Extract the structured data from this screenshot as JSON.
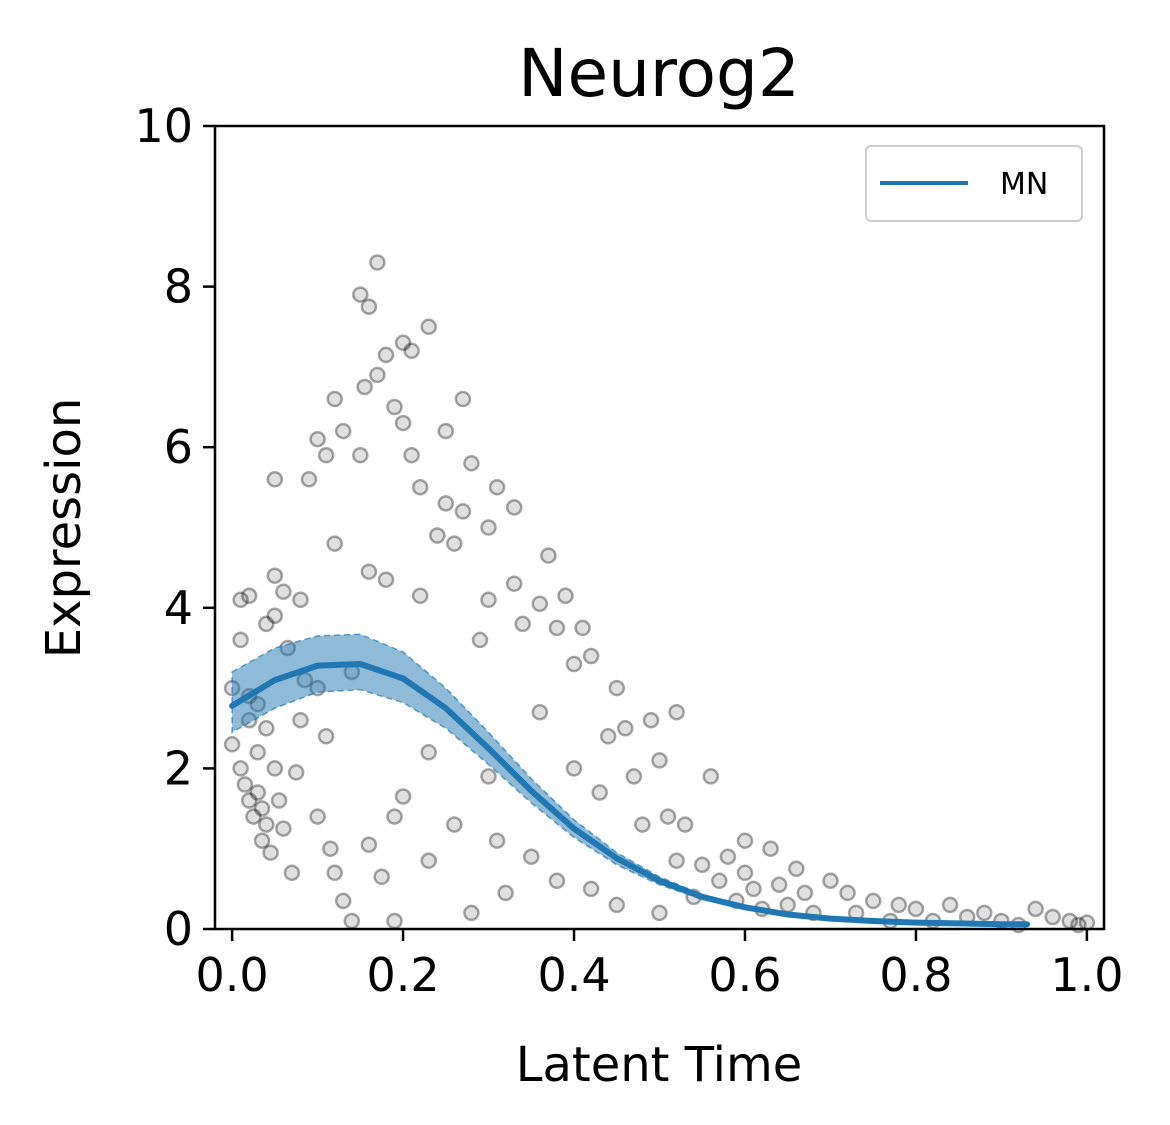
{
  "chart_data": {
    "type": "scatter",
    "title": "Neurog2",
    "xlabel": "Latent Time",
    "ylabel": "Expression",
    "xlim": [
      -0.02,
      1.02
    ],
    "ylim": [
      0,
      10
    ],
    "xticks": [
      "0.0",
      "0.2",
      "0.4",
      "0.6",
      "0.8",
      "1.0"
    ],
    "yticks": [
      "0",
      "2",
      "4",
      "6",
      "8",
      "10"
    ],
    "grid": false,
    "legend": {
      "position": "top-right",
      "entries": [
        "MN"
      ]
    },
    "colors": {
      "points": "#000000",
      "fit_line": "#1f77b4",
      "band": "#1f77b4"
    },
    "series": [
      {
        "name": "MN",
        "kind": "line",
        "x": [
          0.0,
          0.05,
          0.1,
          0.15,
          0.2,
          0.25,
          0.3,
          0.35,
          0.4,
          0.45,
          0.5,
          0.55,
          0.6,
          0.65,
          0.7,
          0.75,
          0.8,
          0.85,
          0.9,
          0.93
        ],
        "y": [
          2.78,
          3.1,
          3.28,
          3.3,
          3.12,
          2.75,
          2.25,
          1.72,
          1.25,
          0.88,
          0.6,
          0.4,
          0.27,
          0.18,
          0.13,
          0.1,
          0.08,
          0.07,
          0.06,
          0.06
        ],
        "upper": [
          3.2,
          3.5,
          3.65,
          3.67,
          3.45,
          3.0,
          2.45,
          1.87,
          1.36,
          0.95,
          0.65,
          0.43,
          0.29,
          0.19,
          0.14,
          0.11,
          0.09,
          0.08,
          0.07,
          0.07
        ],
        "lower": [
          2.45,
          2.75,
          2.95,
          2.98,
          2.82,
          2.5,
          2.05,
          1.57,
          1.14,
          0.8,
          0.55,
          0.37,
          0.25,
          0.17,
          0.12,
          0.09,
          0.07,
          0.06,
          0.05,
          0.05
        ]
      },
      {
        "name": "",
        "kind": "scatter",
        "points": [
          [
            0.0,
            2.3
          ],
          [
            0.0,
            3.0
          ],
          [
            0.01,
            2.0
          ],
          [
            0.01,
            3.6
          ],
          [
            0.01,
            4.1
          ],
          [
            0.015,
            1.8
          ],
          [
            0.02,
            2.6
          ],
          [
            0.02,
            1.6
          ],
          [
            0.02,
            4.15
          ],
          [
            0.02,
            2.9
          ],
          [
            0.025,
            1.4
          ],
          [
            0.03,
            2.2
          ],
          [
            0.03,
            1.7
          ],
          [
            0.03,
            2.8
          ],
          [
            0.035,
            1.5
          ],
          [
            0.035,
            1.1
          ],
          [
            0.04,
            2.5
          ],
          [
            0.04,
            1.3
          ],
          [
            0.04,
            3.8
          ],
          [
            0.045,
            0.95
          ],
          [
            0.05,
            2.0
          ],
          [
            0.05,
            3.9
          ],
          [
            0.05,
            4.4
          ],
          [
            0.05,
            5.6
          ],
          [
            0.055,
            1.6
          ],
          [
            0.06,
            1.25
          ],
          [
            0.06,
            4.2
          ],
          [
            0.065,
            3.5
          ],
          [
            0.07,
            0.7
          ],
          [
            0.075,
            1.95
          ],
          [
            0.08,
            2.6
          ],
          [
            0.08,
            4.1
          ],
          [
            0.085,
            3.1
          ],
          [
            0.09,
            5.6
          ],
          [
            0.1,
            1.4
          ],
          [
            0.1,
            3.0
          ],
          [
            0.1,
            6.1
          ],
          [
            0.11,
            2.4
          ],
          [
            0.11,
            5.9
          ],
          [
            0.115,
            1.0
          ],
          [
            0.12,
            0.7
          ],
          [
            0.12,
            4.8
          ],
          [
            0.12,
            6.6
          ],
          [
            0.13,
            6.2
          ],
          [
            0.13,
            0.35
          ],
          [
            0.14,
            3.2
          ],
          [
            0.14,
            0.1
          ],
          [
            0.15,
            5.9
          ],
          [
            0.15,
            7.9
          ],
          [
            0.155,
            6.75
          ],
          [
            0.16,
            1.05
          ],
          [
            0.16,
            4.45
          ],
          [
            0.16,
            7.75
          ],
          [
            0.17,
            8.3
          ],
          [
            0.17,
            6.9
          ],
          [
            0.175,
            0.65
          ],
          [
            0.18,
            7.15
          ],
          [
            0.18,
            4.35
          ],
          [
            0.19,
            6.5
          ],
          [
            0.19,
            1.4
          ],
          [
            0.19,
            0.1
          ],
          [
            0.2,
            7.3
          ],
          [
            0.2,
            6.3
          ],
          [
            0.2,
            1.65
          ],
          [
            0.21,
            5.9
          ],
          [
            0.21,
            7.2
          ],
          [
            0.22,
            4.15
          ],
          [
            0.22,
            5.5
          ],
          [
            0.23,
            2.2
          ],
          [
            0.23,
            7.5
          ],
          [
            0.23,
            0.85
          ],
          [
            0.24,
            4.9
          ],
          [
            0.25,
            5.3
          ],
          [
            0.25,
            6.2
          ],
          [
            0.26,
            1.3
          ],
          [
            0.26,
            4.8
          ],
          [
            0.27,
            5.2
          ],
          [
            0.27,
            6.6
          ],
          [
            0.28,
            5.8
          ],
          [
            0.28,
            0.2
          ],
          [
            0.29,
            3.6
          ],
          [
            0.3,
            5.0
          ],
          [
            0.3,
            4.1
          ],
          [
            0.3,
            1.9
          ],
          [
            0.31,
            1.1
          ],
          [
            0.31,
            5.5
          ],
          [
            0.32,
            0.45
          ],
          [
            0.33,
            4.3
          ],
          [
            0.33,
            5.25
          ],
          [
            0.34,
            3.8
          ],
          [
            0.35,
            0.9
          ],
          [
            0.36,
            4.05
          ],
          [
            0.36,
            2.7
          ],
          [
            0.37,
            4.65
          ],
          [
            0.38,
            3.75
          ],
          [
            0.38,
            0.6
          ],
          [
            0.39,
            4.15
          ],
          [
            0.4,
            3.3
          ],
          [
            0.4,
            2.0
          ],
          [
            0.41,
            3.75
          ],
          [
            0.42,
            3.4
          ],
          [
            0.42,
            0.5
          ],
          [
            0.43,
            1.7
          ],
          [
            0.44,
            2.4
          ],
          [
            0.45,
            3.0
          ],
          [
            0.45,
            0.3
          ],
          [
            0.46,
            2.5
          ],
          [
            0.47,
            1.9
          ],
          [
            0.48,
            1.3
          ],
          [
            0.49,
            2.6
          ],
          [
            0.5,
            2.1
          ],
          [
            0.5,
            0.2
          ],
          [
            0.51,
            1.4
          ],
          [
            0.52,
            0.85
          ],
          [
            0.52,
            2.7
          ],
          [
            0.53,
            1.3
          ],
          [
            0.54,
            0.4
          ],
          [
            0.55,
            0.8
          ],
          [
            0.56,
            1.9
          ],
          [
            0.57,
            0.6
          ],
          [
            0.58,
            0.9
          ],
          [
            0.59,
            0.35
          ],
          [
            0.6,
            1.1
          ],
          [
            0.6,
            0.7
          ],
          [
            0.61,
            0.5
          ],
          [
            0.62,
            0.25
          ],
          [
            0.63,
            1.0
          ],
          [
            0.64,
            0.55
          ],
          [
            0.65,
            0.3
          ],
          [
            0.66,
            0.75
          ],
          [
            0.67,
            0.45
          ],
          [
            0.68,
            0.2
          ],
          [
            0.7,
            0.6
          ],
          [
            0.72,
            0.45
          ],
          [
            0.73,
            0.2
          ],
          [
            0.75,
            0.35
          ],
          [
            0.77,
            0.1
          ],
          [
            0.78,
            0.3
          ],
          [
            0.8,
            0.25
          ],
          [
            0.82,
            0.1
          ],
          [
            0.84,
            0.3
          ],
          [
            0.86,
            0.15
          ],
          [
            0.88,
            0.2
          ],
          [
            0.9,
            0.1
          ],
          [
            0.92,
            0.05
          ],
          [
            0.94,
            0.25
          ],
          [
            0.96,
            0.15
          ],
          [
            0.98,
            0.1
          ],
          [
            1.0,
            0.08
          ],
          [
            0.99,
            0.05
          ]
        ]
      }
    ]
  }
}
